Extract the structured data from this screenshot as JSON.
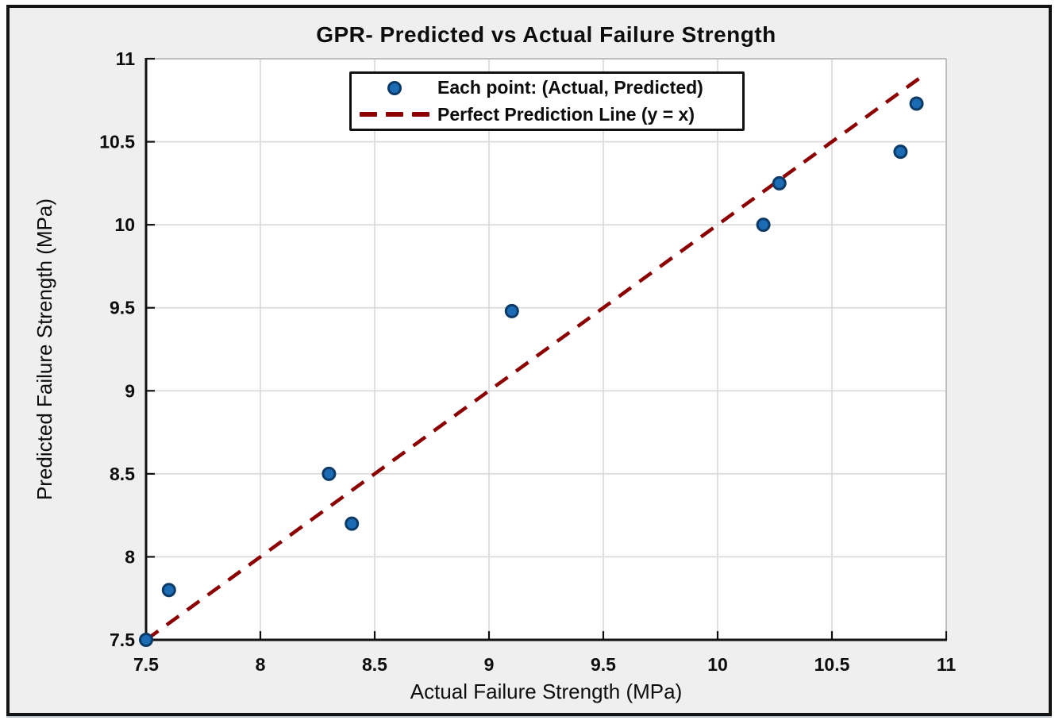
{
  "figure": {
    "background_color": "#efefef",
    "frame_color": "#141414",
    "plot_background": "#ffffff"
  },
  "chart_data": {
    "type": "scatter",
    "title": "GPR- Predicted vs Actual Failure Strength",
    "xlabel": "Actual Failure Strength (MPa)",
    "ylabel": "Predicted Failure Strength (MPa)",
    "xlim": [
      7.5,
      11
    ],
    "ylim": [
      7.5,
      11
    ],
    "xticks": [
      7.5,
      8,
      8.5,
      9,
      9.5,
      10,
      10.5,
      11
    ],
    "yticks": [
      7.5,
      8,
      8.5,
      9,
      9.5,
      10,
      10.5,
      11
    ],
    "grid": true,
    "grid_color": "#d9d9d9",
    "axis_color": "#111111",
    "box_color": "#b9b9b9",
    "legend_position": "top-center-inside",
    "series": [
      {
        "name": "Each point: (Actual, Predicted)",
        "kind": "scatter",
        "marker_fill": "#1b6cb5",
        "marker_edge": "#0c3a66",
        "points": [
          [
            7.5,
            7.5
          ],
          [
            7.6,
            7.8
          ],
          [
            8.3,
            8.5
          ],
          [
            8.4,
            8.2
          ],
          [
            9.1,
            9.48
          ],
          [
            10.2,
            10.0
          ],
          [
            10.27,
            10.25
          ],
          [
            10.8,
            10.44
          ],
          [
            10.87,
            10.73
          ]
        ]
      },
      {
        "name": "Perfect Prediction Line (y = x)",
        "kind": "line",
        "style": "dashed",
        "color": "#8B0000",
        "x": [
          7.5,
          10.9
        ],
        "y": [
          7.5,
          10.9
        ]
      }
    ]
  },
  "legend": {
    "entries": [
      {
        "label": "Each point: (Actual, Predicted)",
        "icon": "scatter-marker-icon"
      },
      {
        "label": "Perfect Prediction Line (y = x)",
        "icon": "dashed-line-icon"
      }
    ]
  }
}
